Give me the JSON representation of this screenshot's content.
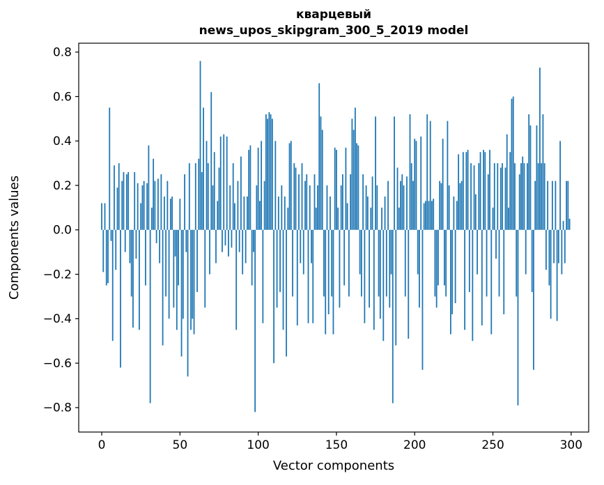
{
  "figure": {
    "background": "#ffffff"
  },
  "chart_data": {
    "type": "bar",
    "title_lines": [
      "кварцевый",
      "news_upos_skipgram_300_5_2019 model"
    ],
    "xlabel": "Vector components",
    "ylabel": "Components values",
    "bar_color": "#1f77b4",
    "xlim": [
      -14.7,
      311.2
    ],
    "ylim": [
      -0.91,
      0.84
    ],
    "xticks": [
      0,
      50,
      100,
      150,
      200,
      250,
      300
    ],
    "yticks": [
      0.8,
      0.6,
      0.4,
      0.2,
      0.0,
      -0.2,
      -0.4,
      -0.6,
      -0.8
    ],
    "grid": false,
    "legend": "none",
    "x_start": 0,
    "values": [
      0.12,
      -0.19,
      0.12,
      -0.25,
      -0.24,
      0.55,
      -0.05,
      -0.5,
      0.29,
      -0.18,
      0.19,
      0.3,
      -0.62,
      0.22,
      0.26,
      -0.1,
      0.25,
      0.26,
      -0.15,
      -0.3,
      -0.44,
      0.26,
      -0.13,
      0.21,
      -0.45,
      0.12,
      0.2,
      0.22,
      -0.25,
      0.21,
      0.38,
      -0.78,
      0.1,
      0.32,
      0.22,
      -0.06,
      0.23,
      -0.15,
      0.25,
      -0.52,
      0.15,
      -0.3,
      0.22,
      -0.4,
      0.14,
      0.15,
      -0.35,
      -0.12,
      -0.45,
      -0.25,
      0.14,
      -0.57,
      -0.4,
      0.25,
      -0.1,
      -0.66,
      0.3,
      -0.45,
      -0.4,
      -0.47,
      0.3,
      -0.28,
      0.32,
      0.76,
      0.26,
      0.55,
      -0.35,
      0.4,
      0.3,
      -0.2,
      0.62,
      0.2,
      0.35,
      -0.15,
      0.13,
      0.28,
      0.42,
      -0.1,
      0.43,
      -0.07,
      0.42,
      -0.12,
      0.2,
      -0.08,
      0.3,
      0.12,
      -0.45,
      0.22,
      -0.1,
      0.33,
      -0.2,
      0.15,
      -0.15,
      0.15,
      0.36,
      0.38,
      -0.25,
      -0.1,
      -0.82,
      0.2,
      0.37,
      0.13,
      0.4,
      -0.42,
      0.22,
      0.52,
      0.5,
      0.53,
      0.52,
      0.5,
      -0.6,
      0.4,
      -0.35,
      0.15,
      -0.28,
      0.2,
      -0.45,
      0.15,
      -0.57,
      0.1,
      0.39,
      0.4,
      -0.3,
      0.3,
      0.28,
      -0.43,
      0.25,
      -0.15,
      0.3,
      -0.2,
      0.22,
      0.25,
      -0.42,
      0.2,
      -0.15,
      -0.42,
      0.25,
      0.1,
      0.2,
      0.66,
      0.51,
      0.45,
      -0.3,
      -0.47,
      0.2,
      -0.38,
      0.15,
      -0.3,
      -0.47,
      0.37,
      0.36,
      0.1,
      -0.35,
      0.2,
      0.25,
      -0.25,
      0.37,
      0.12,
      -0.3,
      0.25,
      0.5,
      0.45,
      0.55,
      0.39,
      0.38,
      -0.2,
      -0.3,
      0.25,
      -0.42,
      0.2,
      0.15,
      -0.35,
      0.1,
      0.24,
      -0.45,
      0.51,
      0.2,
      -0.3,
      -0.4,
      0.1,
      -0.5,
      0.15,
      -0.3,
      0.22,
      -0.35,
      -0.2,
      -0.78,
      0.51,
      -0.52,
      0.28,
      0.1,
      0.22,
      0.25,
      0.2,
      -0.3,
      0.24,
      -0.49,
      0.52,
      0.3,
      0.22,
      0.41,
      0.4,
      -0.2,
      -0.35,
      0.42,
      -0.63,
      0.12,
      0.13,
      0.52,
      0.13,
      0.49,
      0.13,
      0.14,
      -0.3,
      -0.35,
      -0.25,
      0.22,
      0.21,
      0.41,
      -0.25,
      -0.3,
      0.49,
      0.2,
      -0.47,
      -0.38,
      0.15,
      -0.33,
      0.13,
      0.34,
      0.21,
      0.22,
      0.35,
      -0.45,
      0.35,
      0.36,
      -0.28,
      0.3,
      -0.5,
      0.29,
      0.16,
      -0.2,
      0.3,
      0.35,
      -0.43,
      0.36,
      0.35,
      -0.3,
      0.25,
      0.36,
      -0.47,
      0.1,
      0.3,
      -0.13,
      0.3,
      -0.3,
      0.28,
      0.3,
      -0.38,
      0.28,
      0.43,
      0.1,
      0.35,
      0.59,
      0.6,
      0.3,
      -0.3,
      -0.79,
      0.25,
      0.3,
      0.33,
      0.3,
      -0.2,
      0.3,
      0.52,
      0.47,
      -0.28,
      -0.63,
      0.22,
      0.47,
      0.3,
      0.73,
      0.3,
      0.52,
      0.3,
      -0.18,
      0.22,
      -0.25,
      -0.4,
      0.22,
      -0.15,
      0.22,
      -0.41,
      -0.15,
      0.4,
      -0.2,
      0.04,
      -0.15,
      0.22,
      0.22,
      0.05
    ]
  }
}
